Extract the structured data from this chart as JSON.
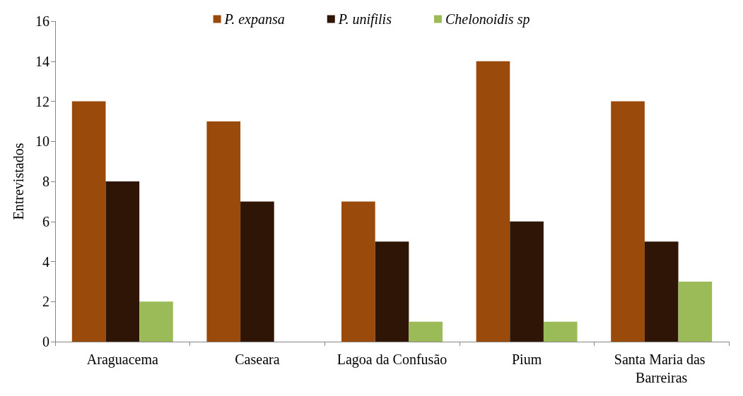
{
  "chart_data": {
    "type": "bar",
    "ylabel": "Entrevistados",
    "categories": [
      "Araguacema",
      "Caseara",
      "Lagoa da Confusão",
      "Pium",
      "Santa Maria das Barreiras"
    ],
    "series": [
      {
        "name": "P. expansa",
        "color": "#9a4a0a",
        "values": [
          12,
          11,
          7,
          14,
          12
        ]
      },
      {
        "name": "P. unifilis",
        "color": "#2e1505",
        "values": [
          8,
          7,
          5,
          6,
          5
        ]
      },
      {
        "name": "Chelonoidis sp",
        "color": "#9bbb59",
        "values": [
          2,
          0,
          1,
          1,
          3
        ]
      }
    ],
    "ylim": [
      0,
      16
    ],
    "yticks": [
      0,
      2,
      4,
      6,
      8,
      10,
      12,
      14,
      16
    ],
    "grid": false,
    "legend": "top"
  }
}
